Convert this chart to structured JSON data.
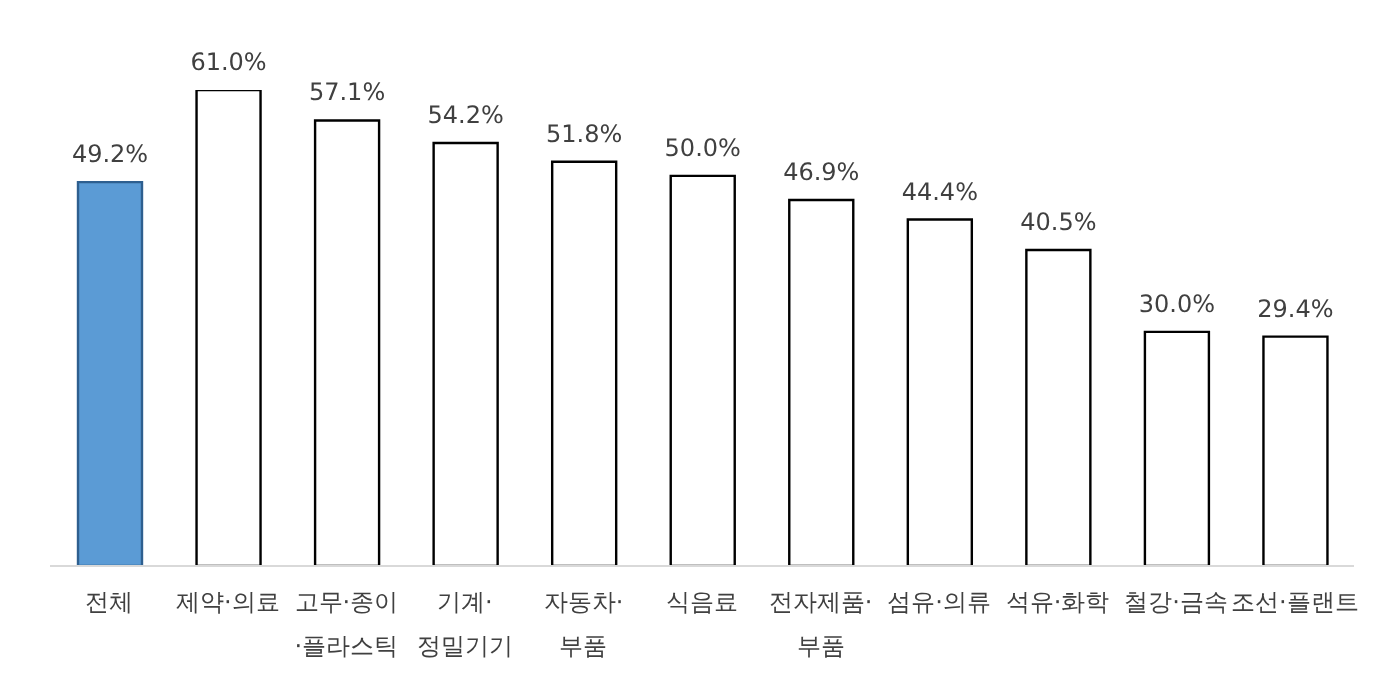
{
  "chart_data": {
    "type": "bar",
    "categories": [
      "전체",
      "제약·의료",
      "고무·종이\n·플라스틱",
      "기계·\n정밀기기",
      "자동차·\n부품",
      "식음료",
      "전자제품·\n부품",
      "섬유·의류",
      "석유·화학",
      "철강·금속",
      "조선·플랜트"
    ],
    "values": [
      49.2,
      61.0,
      57.1,
      54.2,
      51.8,
      50.0,
      46.9,
      44.4,
      40.5,
      30.0,
      29.4
    ],
    "value_labels": [
      "49.2%",
      "61.0%",
      "57.1%",
      "54.2%",
      "51.8%",
      "50.0%",
      "46.9%",
      "44.4%",
      "40.5%",
      "30.0%",
      "29.4%"
    ],
    "colors": [
      "#5b9bd5",
      "#ffffff",
      "#ffffff",
      "#ffffff",
      "#ffffff",
      "#ffffff",
      "#ffffff",
      "#ffffff",
      "#ffffff",
      "#ffffff",
      "#ffffff"
    ],
    "grid": false,
    "legend": false
  }
}
